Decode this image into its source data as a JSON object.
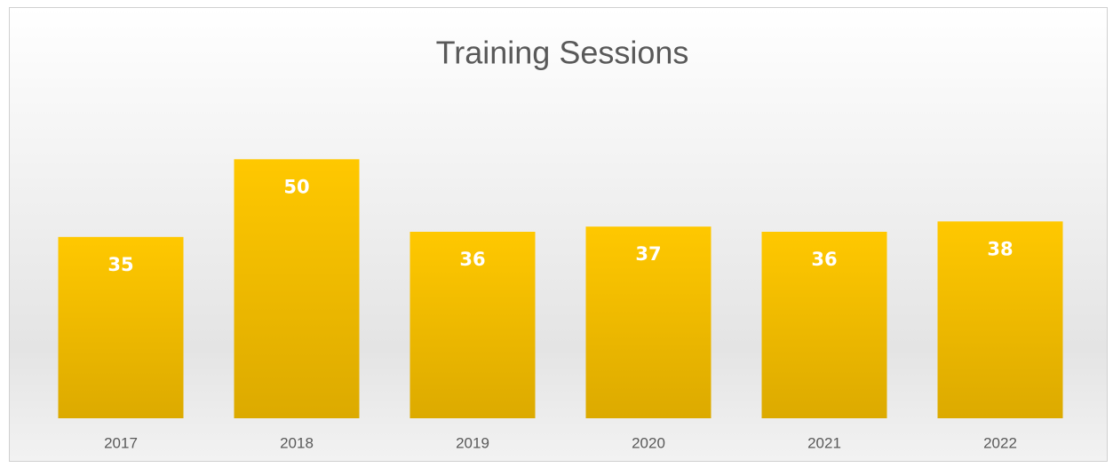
{
  "chart_data": {
    "type": "bar",
    "title": "Training Sessions",
    "categories": [
      "2017",
      "2018",
      "2019",
      "2020",
      "2021",
      "2022"
    ],
    "values": [
      35,
      50,
      36,
      37,
      36,
      38
    ],
    "color": "#fec400",
    "ylim": [
      0,
      60
    ]
  }
}
